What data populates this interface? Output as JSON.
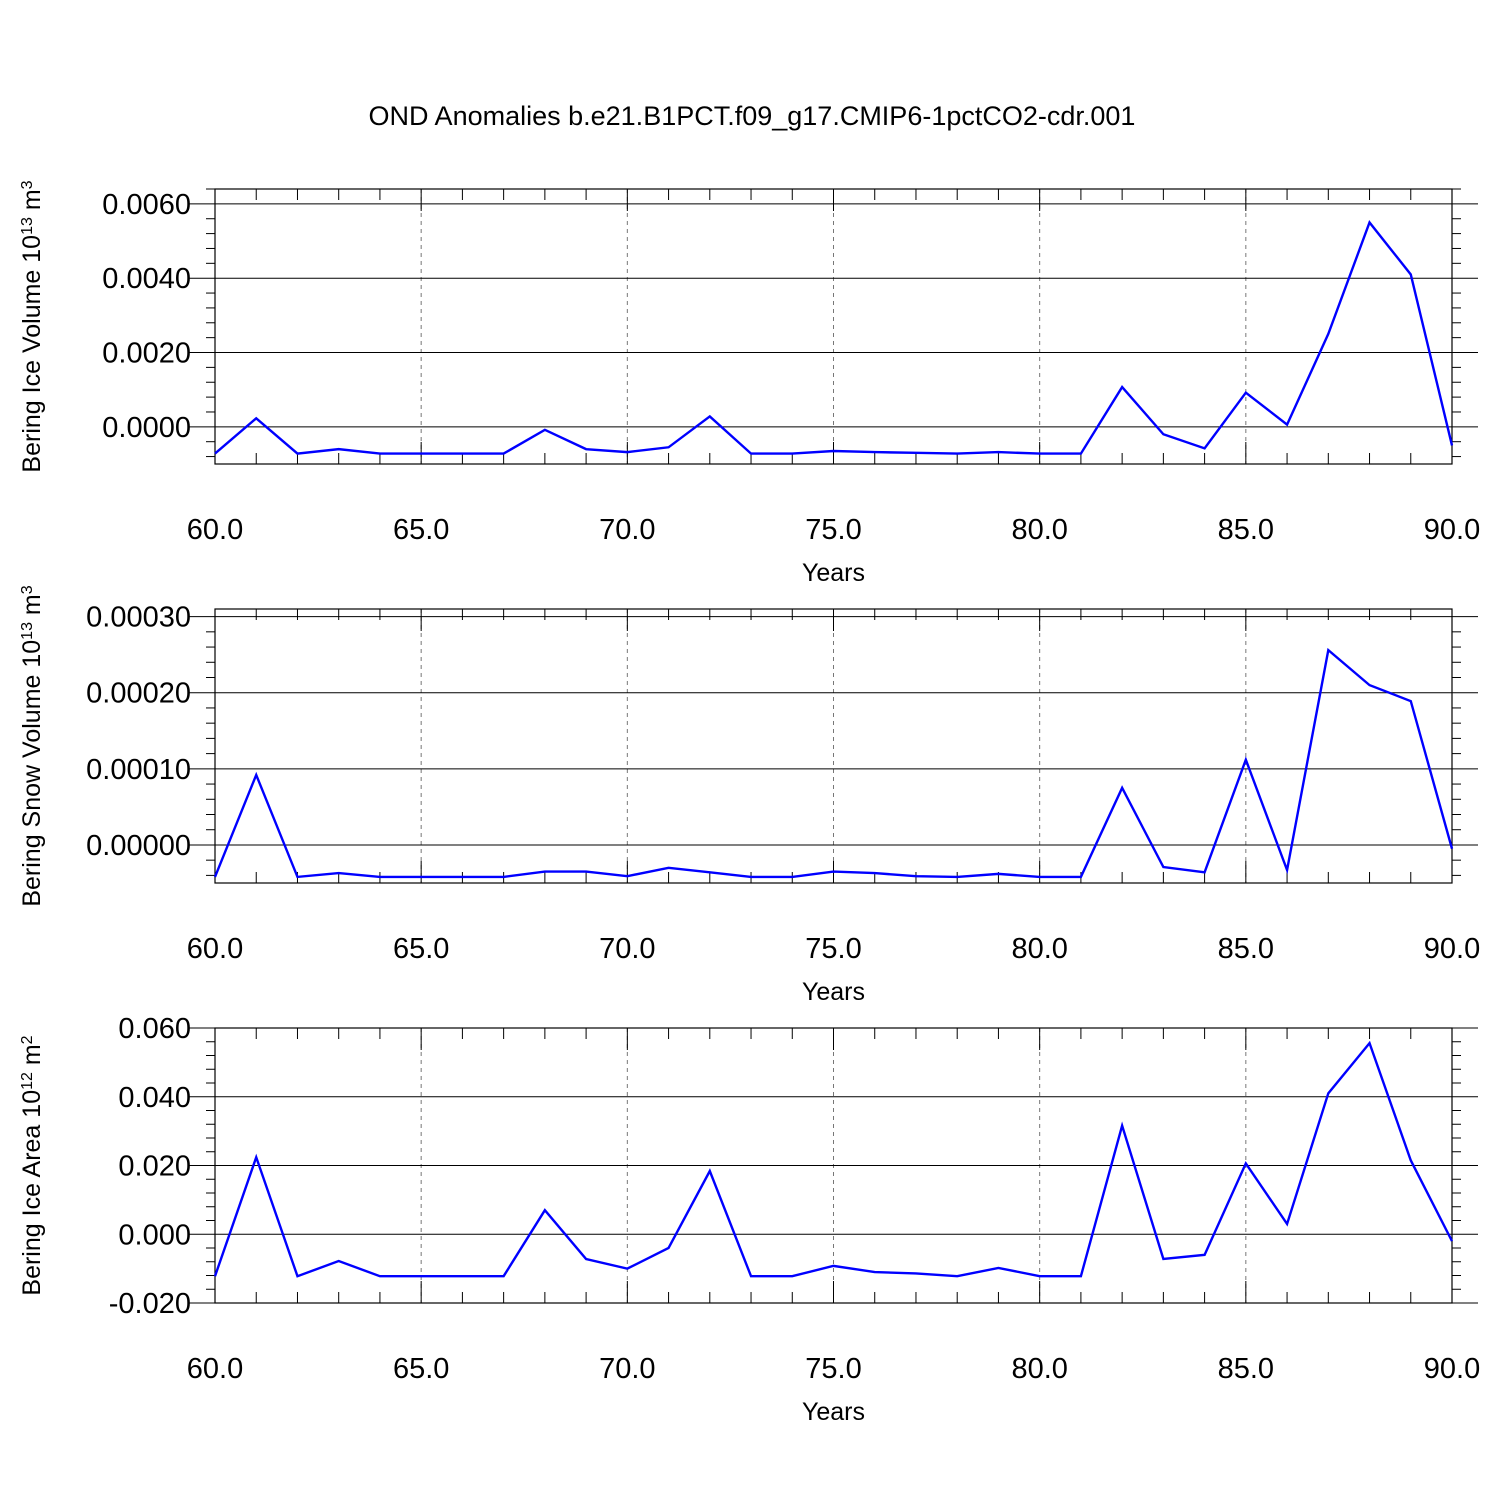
{
  "title": "OND Anomalies b.e21.B1PCT.f09_g17.CMIP6-1pctCO2-cdr.001",
  "colors": {
    "series": "#0000ff",
    "frame": "#000000",
    "grid": "#777777"
  },
  "chart_data": [
    {
      "type": "line",
      "ylabel": "Bering Ice Volume",
      "ylabel_unit_base": "10",
      "ylabel_unit_exp": "13",
      "ylabel_unit_symbol": "m",
      "ylabel_unit_symbol_exp": "3",
      "xlabel": "Years",
      "xlim": [
        60,
        90
      ],
      "ylim": [
        -0.001,
        0.0064
      ],
      "x_ticks": [
        60,
        65,
        70,
        75,
        80,
        85,
        90
      ],
      "x_tick_labels": [
        "60.0",
        "65.0",
        "70.0",
        "75.0",
        "80.0",
        "85.0",
        "90.0"
      ],
      "y_ticks": [
        0.0,
        0.002,
        0.004,
        0.006
      ],
      "y_tick_labels": [
        "0.0000",
        "0.0020",
        "0.0040",
        "0.0060"
      ],
      "grid": "dashed vertical at major x ticks",
      "x": [
        60,
        61,
        62,
        63,
        64,
        65,
        66,
        67,
        68,
        69,
        70,
        71,
        72,
        73,
        74,
        75,
        76,
        77,
        78,
        79,
        80,
        81,
        82,
        83,
        84,
        85,
        86,
        87,
        88,
        89,
        90
      ],
      "values": [
        -0.00072,
        0.00023,
        -0.00072,
        -0.0006,
        -0.00072,
        -0.00072,
        -0.00072,
        -0.00072,
        -8e-05,
        -0.0006,
        -0.00068,
        -0.00055,
        0.00028,
        -0.00072,
        -0.00072,
        -0.00065,
        -0.00068,
        -0.0007,
        -0.00072,
        -0.00068,
        -0.00072,
        -0.00072,
        0.00107,
        -0.0002,
        -0.00058,
        0.00092,
        6e-05,
        0.0025,
        0.0055,
        0.0041,
        -0.0005
      ]
    },
    {
      "type": "line",
      "ylabel": "Bering Snow Volume",
      "ylabel_unit_base": "10",
      "ylabel_unit_exp": "13",
      "ylabel_unit_symbol": "m",
      "ylabel_unit_symbol_exp": "3",
      "xlabel": "Years",
      "xlim": [
        60,
        90
      ],
      "ylim": [
        -5e-05,
        0.00031
      ],
      "x_ticks": [
        60,
        65,
        70,
        75,
        80,
        85,
        90
      ],
      "x_tick_labels": [
        "60.0",
        "65.0",
        "70.0",
        "75.0",
        "80.0",
        "85.0",
        "90.0"
      ],
      "y_ticks": [
        0.0,
        0.0001,
        0.0002,
        0.0003
      ],
      "y_tick_labels": [
        "0.00000",
        "0.00010",
        "0.00020",
        "0.00030"
      ],
      "grid": "dashed vertical at major x ticks",
      "x": [
        60,
        61,
        62,
        63,
        64,
        65,
        66,
        67,
        68,
        69,
        70,
        71,
        72,
        73,
        74,
        75,
        76,
        77,
        78,
        79,
        80,
        81,
        82,
        83,
        84,
        85,
        86,
        87,
        88,
        89,
        90
      ],
      "values": [
        -4.2e-05,
        9.2e-05,
        -4.2e-05,
        -3.7e-05,
        -4.2e-05,
        -4.2e-05,
        -4.2e-05,
        -4.2e-05,
        -3.5e-05,
        -3.5e-05,
        -4.1e-05,
        -3e-05,
        -3.6e-05,
        -4.2e-05,
        -4.2e-05,
        -3.5e-05,
        -3.7e-05,
        -4.1e-05,
        -4.2e-05,
        -3.8e-05,
        -4.2e-05,
        -4.2e-05,
        7.5e-05,
        -2.9e-05,
        -3.6e-05,
        0.000112,
        -3.3e-05,
        0.000256,
        0.00021,
        0.000189,
        -5e-06
      ]
    },
    {
      "type": "line",
      "ylabel": "Bering Ice Area",
      "ylabel_unit_base": "10",
      "ylabel_unit_exp": "12",
      "ylabel_unit_symbol": "m",
      "ylabel_unit_symbol_exp": "2",
      "xlabel": "Years",
      "xlim": [
        60,
        90
      ],
      "ylim": [
        -0.02,
        0.06
      ],
      "x_ticks": [
        60,
        65,
        70,
        75,
        80,
        85,
        90
      ],
      "x_tick_labels": [
        "60.0",
        "65.0",
        "70.0",
        "75.0",
        "80.0",
        "85.0",
        "90.0"
      ],
      "y_ticks": [
        -0.02,
        0.0,
        0.02,
        0.04,
        0.06
      ],
      "y_tick_labels": [
        "-0.020",
        "0.000",
        "0.020",
        "0.040",
        "0.060"
      ],
      "grid": "dashed vertical at major x ticks",
      "x": [
        60,
        61,
        62,
        63,
        64,
        65,
        66,
        67,
        68,
        69,
        70,
        71,
        72,
        73,
        74,
        75,
        76,
        77,
        78,
        79,
        80,
        81,
        82,
        83,
        84,
        85,
        86,
        87,
        88,
        89,
        90
      ],
      "values": [
        -0.0122,
        0.0224,
        -0.0122,
        -0.0078,
        -0.0122,
        -0.0122,
        -0.0122,
        -0.0122,
        0.007,
        -0.0072,
        -0.01,
        -0.004,
        0.0184,
        -0.0122,
        -0.0122,
        -0.0092,
        -0.011,
        -0.0114,
        -0.0122,
        -0.0098,
        -0.0122,
        -0.0122,
        0.0316,
        -0.0072,
        -0.006,
        0.0206,
        0.003,
        0.041,
        0.0556,
        0.0215,
        -0.002
      ]
    }
  ]
}
